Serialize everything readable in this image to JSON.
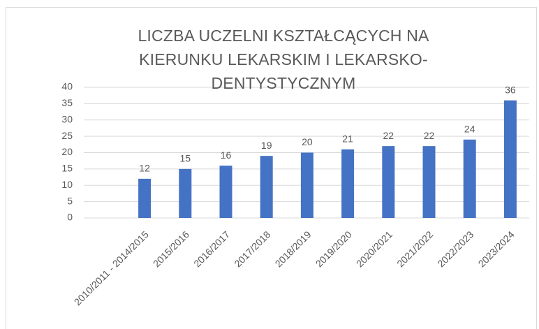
{
  "chart_data": {
    "type": "bar",
    "title": "LICZBA UCZELNI KSZTAŁCĄCYCH NA KIERUNKU LEKARSKIM I LEKARSKO-DENTYSTYCZNYM",
    "categories": [
      "2010/2011 - 2014/2015",
      "2015/2016",
      "2016/2017",
      "2017/2018",
      "2018/2019",
      "2019/2020",
      "2020/2021",
      "2021/2022",
      "2022/2023",
      "2023/2024"
    ],
    "values": [
      12,
      15,
      16,
      19,
      20,
      21,
      22,
      22,
      24,
      36
    ],
    "color": "#4472c4",
    "ylim": [
      0,
      40
    ],
    "yticks": [
      0,
      5,
      10,
      15,
      20,
      25,
      30,
      35,
      40
    ],
    "grid": true
  }
}
